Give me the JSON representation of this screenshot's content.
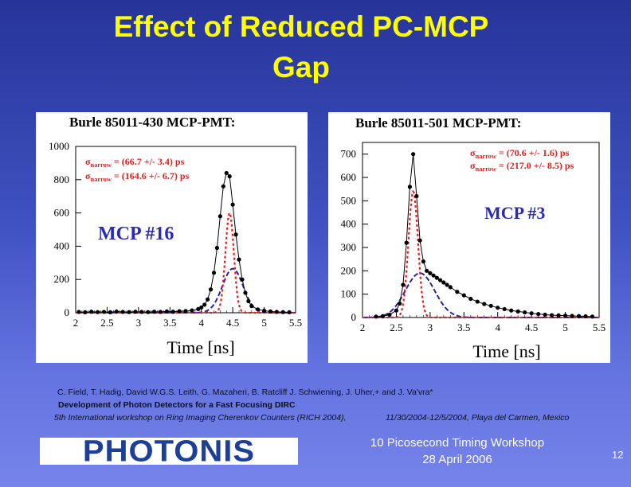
{
  "title": {
    "line1": "Effect of Reduced PC-MCP",
    "line2": "Gap"
  },
  "citation": {
    "authors": "C. Field, T. Hadig, David W.G.S. Leith, G. Mazaheri, B. Ratcliff J. Schwiening, J. Uher,+ and J. Va'vra*",
    "paper": "Development of Photon Detectors for a Fast Focusing DIRC",
    "venue": "5th International workshop on Ring Imaging Cherenkov Counters (RICH 2004),",
    "dates": "11/30/2004-12/5/2004, Playa del Carmen, Mexico"
  },
  "logo": {
    "text": "PHOTONIS"
  },
  "footer": {
    "line1": "10 Picosecond Timing Workshop",
    "line2": "28 April 2006",
    "page": "12"
  },
  "colors": {
    "title": "#ffff00",
    "sigma_text": "#e0201c",
    "annotation": "#2a2ab8",
    "narrow_fit": "#e0201c",
    "wide_fit": "#2a20a8",
    "data": "#000000"
  },
  "chart_data": [
    {
      "type": "scatter",
      "title": "Burle 85011-430 MCP-PMT:",
      "xlabel": "Time [ns]",
      "ylabel": "",
      "xlim": [
        2,
        5.5
      ],
      "ylim": [
        0,
        1000
      ],
      "xticks": [
        "2",
        "2.5",
        "3",
        "3.5",
        "4",
        "4.5",
        "5",
        "5.5"
      ],
      "yticks": [
        "0",
        "200",
        "400",
        "600",
        "800",
        "1000"
      ],
      "annotation": "MCP #16",
      "legend": [
        {
          "prefix": "σ",
          "sub": "narrow",
          "text": "= (66.7 +/- 3.4) ps"
        },
        {
          "prefix": "σ",
          "sub": "narrow",
          "text": "= (164.6 +/- 6.7) ps"
        }
      ],
      "peak_ns": 4.45,
      "peak_counts": 850,
      "narrow_fit": {
        "mean": 4.45,
        "amplitude": 600,
        "sigma_ns": 0.0667
      },
      "wide_fit": {
        "mean": 4.5,
        "amplitude": 265,
        "sigma_ns": 0.1646
      },
      "data_points": {
        "x": [
          2.05,
          2.15,
          2.25,
          2.35,
          2.45,
          2.55,
          2.65,
          2.75,
          2.85,
          2.95,
          3.05,
          3.15,
          3.25,
          3.35,
          3.45,
          3.55,
          3.65,
          3.75,
          3.85,
          3.95,
          4.0,
          4.05,
          4.1,
          4.15,
          4.2,
          4.25,
          4.3,
          4.35,
          4.4,
          4.45,
          4.5,
          4.55,
          4.6,
          4.65,
          4.7,
          4.75,
          4.8,
          4.9,
          5.0,
          5.1,
          5.2,
          5.3,
          5.4
        ],
        "y": [
          5,
          3,
          6,
          4,
          5,
          3,
          7,
          5,
          4,
          6,
          5,
          4,
          6,
          5,
          8,
          6,
          9,
          10,
          14,
          22,
          32,
          48,
          80,
          140,
          240,
          390,
          580,
          760,
          840,
          820,
          650,
          470,
          320,
          200,
          120,
          70,
          40,
          20,
          12,
          8,
          5,
          4,
          3
        ]
      }
    },
    {
      "type": "scatter",
      "title": "Burle 85011-501 MCP-PMT:",
      "xlabel": "Time [ns]",
      "ylabel": "",
      "xlim": [
        2,
        5.5
      ],
      "ylim": [
        0,
        750
      ],
      "xticks": [
        "2",
        "2.5",
        "3",
        "3.5",
        "4",
        "4.5",
        "5",
        "5.5"
      ],
      "yticks": [
        "0",
        "100",
        "200",
        "300",
        "400",
        "500",
        "600",
        "700"
      ],
      "annotation": "MCP #3",
      "legend": [
        {
          "prefix": "σ",
          "sub": "narrow",
          "text": "= (70.6 +/- 1.6) ps"
        },
        {
          "prefix": "σ",
          "sub": "narrow",
          "text": "= (217.0 +/- 8.5) ps"
        }
      ],
      "peak_ns": 2.75,
      "peak_counts": 700,
      "narrow_fit": {
        "mean": 2.75,
        "amplitude": 540,
        "sigma_ns": 0.0706
      },
      "wide_fit": {
        "mean": 2.85,
        "amplitude": 190,
        "sigma_ns": 0.217
      },
      "data_points": {
        "x": [
          2.2,
          2.3,
          2.4,
          2.5,
          2.55,
          2.6,
          2.65,
          2.7,
          2.75,
          2.8,
          2.85,
          2.9,
          2.95,
          3.0,
          3.05,
          3.1,
          3.15,
          3.2,
          3.25,
          3.3,
          3.4,
          3.5,
          3.6,
          3.7,
          3.8,
          3.9,
          4.0,
          4.1,
          4.2,
          4.3,
          4.4,
          4.5,
          4.6,
          4.7,
          4.8,
          4.9,
          5.0,
          5.1,
          5.2,
          5.3,
          5.4
        ],
        "y": [
          4,
          6,
          12,
          30,
          60,
          140,
          320,
          560,
          700,
          520,
          330,
          240,
          200,
          190,
          180,
          170,
          160,
          150,
          140,
          130,
          110,
          95,
          80,
          68,
          58,
          50,
          42,
          36,
          30,
          26,
          22,
          18,
          15,
          12,
          10,
          9,
          8,
          7,
          6,
          5,
          4
        ]
      }
    }
  ]
}
